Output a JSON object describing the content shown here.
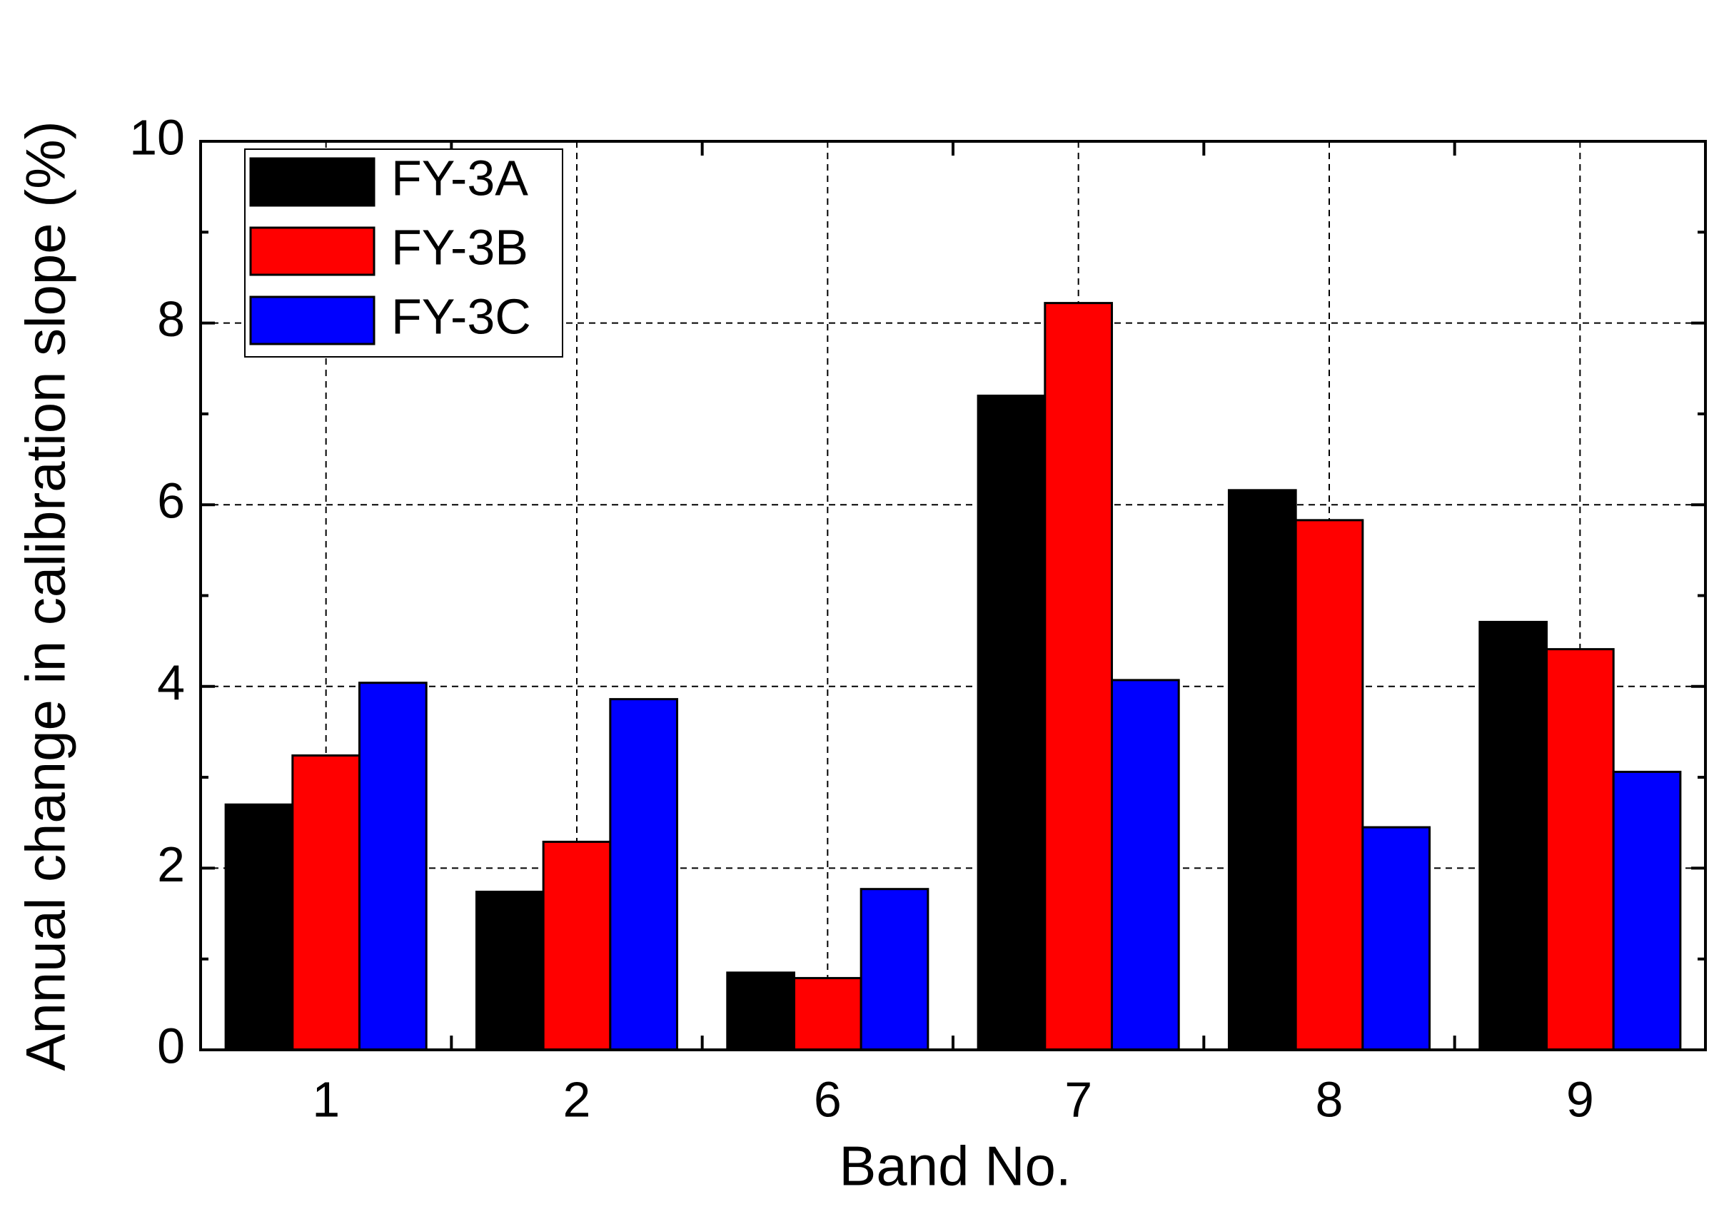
{
  "chart_data": {
    "type": "bar",
    "x_label": "Band No.",
    "y_label": "Annual change in calibration slope (%)",
    "categories": [
      "1",
      "2",
      "6",
      "7",
      "8",
      "9"
    ],
    "series": [
      {
        "name": "FY-3A",
        "color": "#000000",
        "values": [
          2.7,
          1.74,
          0.85,
          7.2,
          6.16,
          4.71
        ]
      },
      {
        "name": "FY-3B",
        "color": "#ff0000",
        "values": [
          3.24,
          2.29,
          0.79,
          8.22,
          5.83,
          4.41
        ]
      },
      {
        "name": "FY-3C",
        "color": "#0000ff",
        "values": [
          4.04,
          3.86,
          1.77,
          4.07,
          2.45,
          3.06
        ]
      }
    ],
    "ylim": [
      0,
      10
    ],
    "yticks": [
      0,
      2,
      4,
      6,
      8,
      10
    ],
    "yminorticks": [
      1,
      3,
      5,
      7,
      9
    ],
    "grid": true,
    "legend": "upper left"
  }
}
